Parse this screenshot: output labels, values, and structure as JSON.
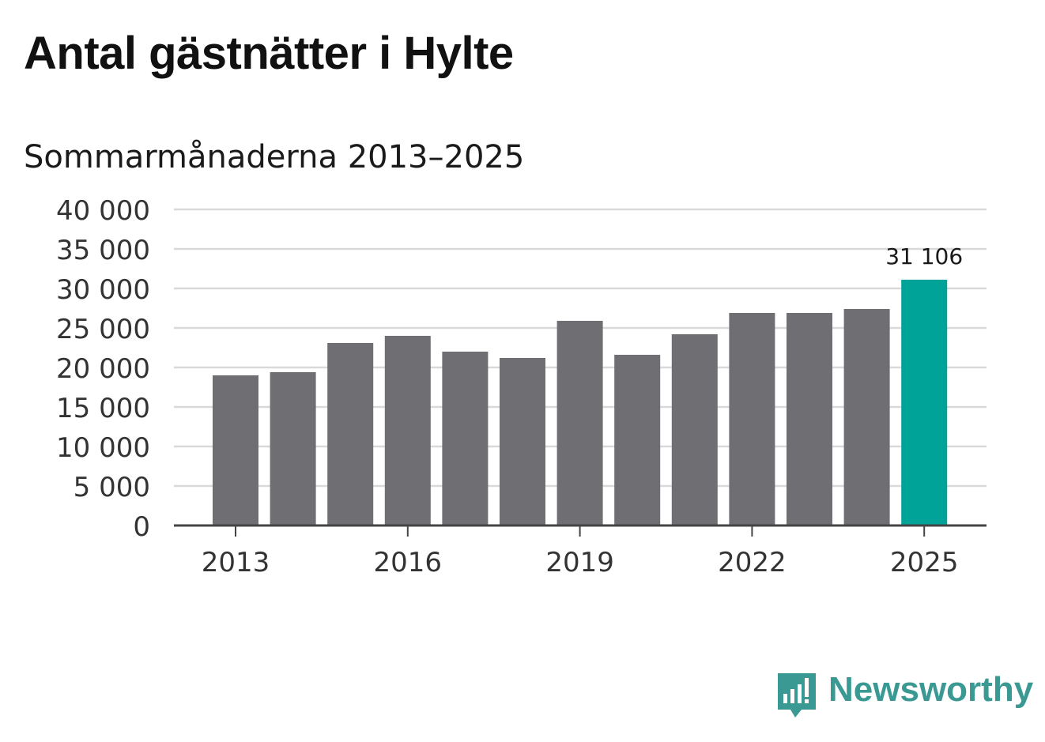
{
  "title": "Antal gästnätter i Hylte",
  "subtitle": "Sommarmånaderna 2013–2025",
  "chart_data": {
    "type": "bar",
    "categories": [
      "2013",
      "2014",
      "2015",
      "2016",
      "2017",
      "2018",
      "2019",
      "2020",
      "2021",
      "2022",
      "2023",
      "2024",
      "2025"
    ],
    "values": [
      19000,
      19400,
      23100,
      24000,
      22000,
      21200,
      25900,
      21600,
      24200,
      26900,
      26900,
      27400,
      31106
    ],
    "ylim": [
      0,
      40000
    ],
    "yticks": [
      0,
      5000,
      10000,
      15000,
      20000,
      25000,
      30000,
      35000,
      40000
    ],
    "ytick_labels": [
      "0",
      "5 000",
      "10 000",
      "15 000",
      "20 000",
      "25 000",
      "30 000",
      "35 000",
      "40 000"
    ],
    "xtick_labels": [
      "2013",
      "2016",
      "2019",
      "2022",
      "2025"
    ],
    "annotation": {
      "category": "2025",
      "label": "31 106"
    },
    "grid": true,
    "colors": {
      "bar": "#6f6e73",
      "highlight": "#00a398",
      "grid": "#d9d9d9",
      "axis": "#444444"
    }
  },
  "logo": {
    "text": "Newsworthy",
    "color": "#3a9a93"
  }
}
